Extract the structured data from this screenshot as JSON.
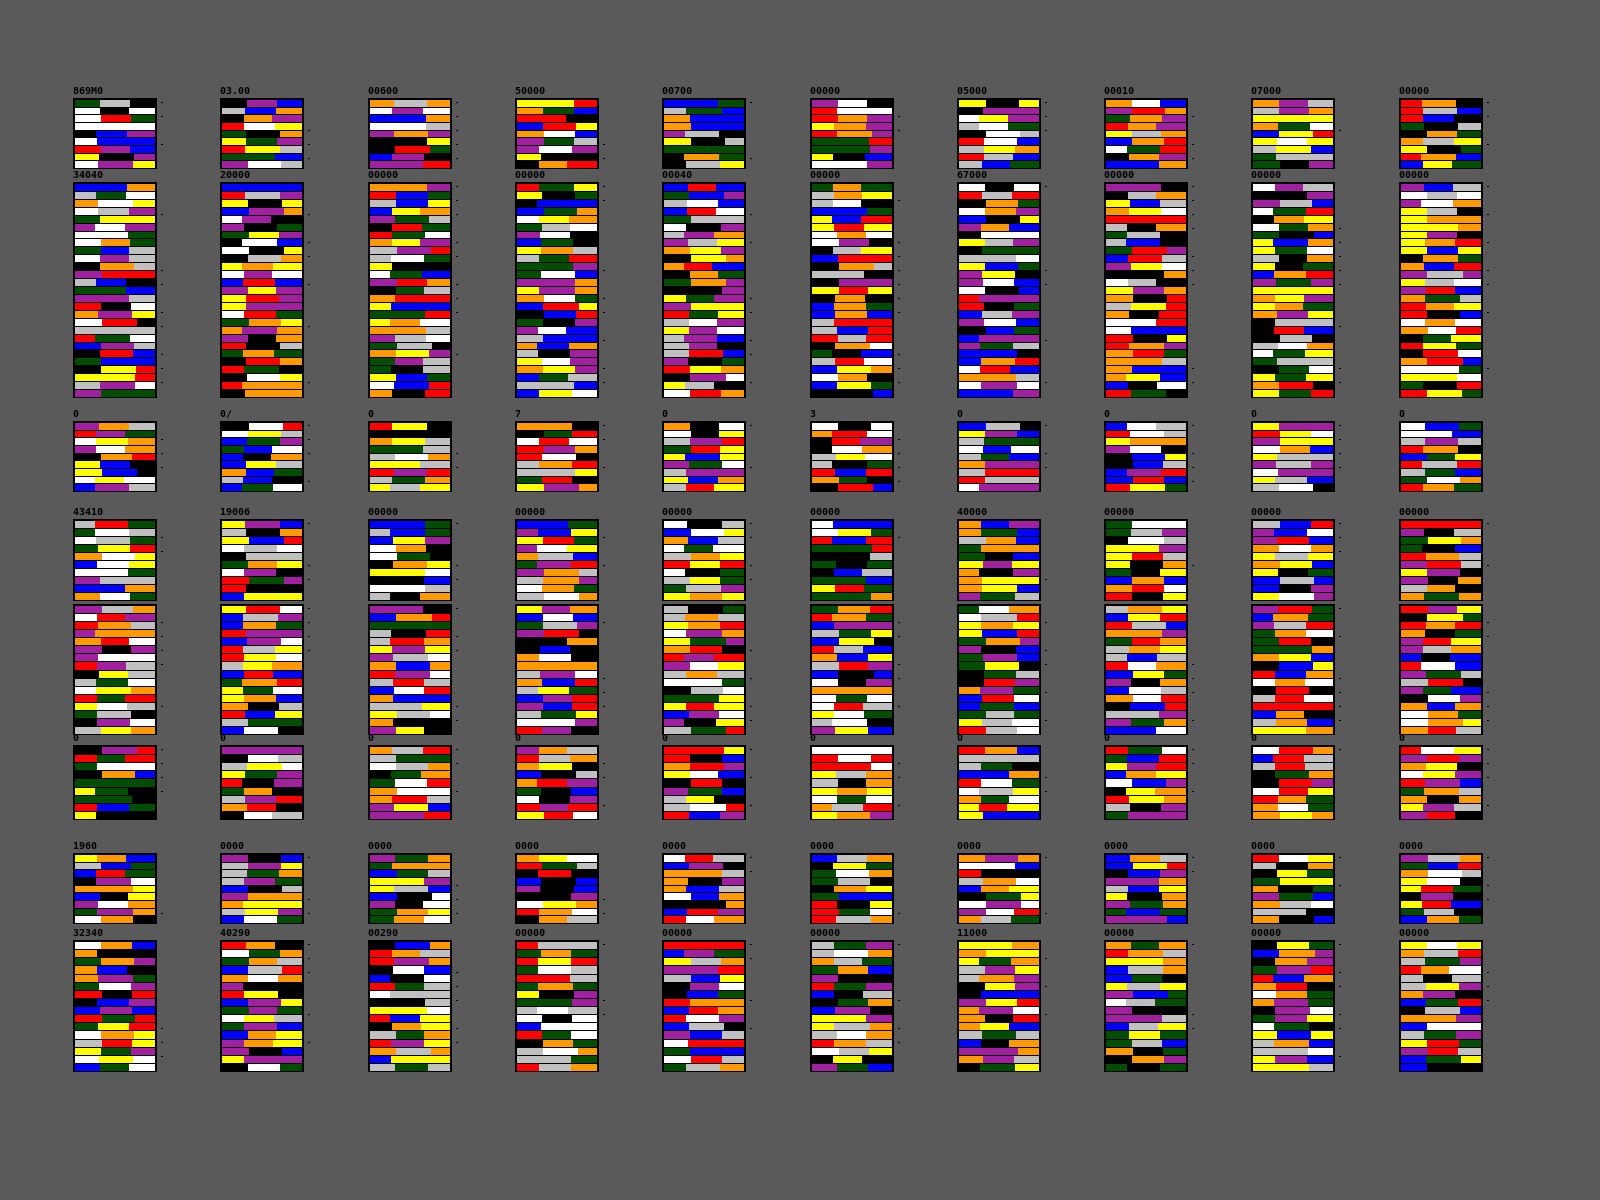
{
  "palette": [
    "#ff9900",
    "#ff0000",
    "#a020a0",
    "#0000ff",
    "#ffff00",
    "#004d00",
    "#000000",
    "#ffffff",
    "#c0c0c0"
  ],
  "background": "#5a5a5a",
  "groups": [
    {
      "labels": [
        "869M0",
        "03.00",
        "00600",
        "50000",
        "00700",
        "00000",
        "05000",
        "00010",
        "07000",
        "00000"
      ]
    },
    {
      "labels": [
        "34040",
        "20000",
        "00000",
        "00000",
        "00040",
        "00000",
        "67000",
        "00000",
        "00000",
        "00000"
      ]
    },
    {
      "labels": [
        "0",
        "0/",
        "0",
        "7",
        "0",
        "3",
        "0",
        "0",
        "0",
        "0"
      ]
    },
    {
      "labels": [
        "43410",
        "19006",
        "00000",
        "00000",
        "00000",
        "00000",
        "40000",
        "00000",
        "00000",
        "00000"
      ]
    },
    {
      "labels": [
        "",
        "",
        "",
        "",
        "",
        "",
        "",
        "",
        "",
        ""
      ]
    },
    {
      "labels": [
        "0",
        "0",
        "0",
        "0",
        "0",
        "0",
        "0",
        "0",
        "0",
        "0"
      ]
    },
    {
      "labels": [
        "1960",
        "0000",
        "0000",
        "0000",
        "0000",
        "0000",
        "0000",
        "0000",
        "0000",
        "0000"
      ]
    },
    {
      "labels": [
        "32340",
        "40290",
        "00290",
        "00000",
        "00000",
        "00000",
        "11000",
        "00000",
        "00000",
        "00000"
      ]
    }
  ]
}
